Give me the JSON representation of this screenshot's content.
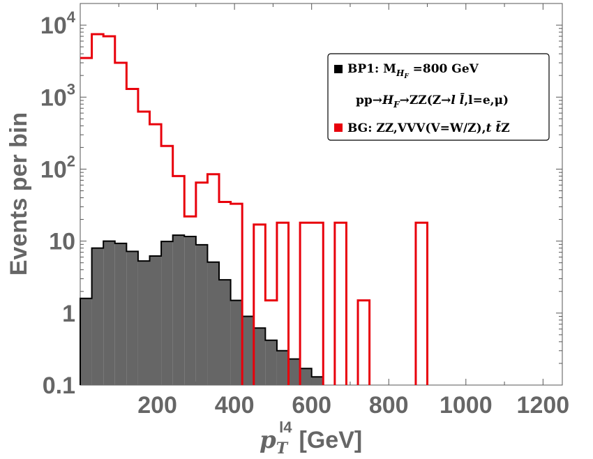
{
  "chart_data": {
    "type": "histogram",
    "yscale": "log",
    "xlim": [
      0,
      1250
    ],
    "ylim": [
      0.1,
      20000
    ],
    "xticks": [
      200,
      400,
      600,
      800,
      1000,
      1200
    ],
    "yticks": [
      0.1,
      1,
      10,
      100,
      1000,
      10000
    ],
    "ytick_labels": [
      {
        "mantissa": "0.1",
        "exp": ""
      },
      {
        "mantissa": "1",
        "exp": ""
      },
      {
        "mantissa": "10",
        "exp": ""
      },
      {
        "mantissa": "10",
        "exp": "2"
      },
      {
        "mantissa": "10",
        "exp": "3"
      },
      {
        "mantissa": "10",
        "exp": "4"
      }
    ],
    "xlabel": {
      "base": "p",
      "sub": "T",
      "sup": "l4",
      "unit": "[GeV]"
    },
    "ylabel": "Events per bin",
    "bin_edges": [
      0,
      30,
      60,
      90,
      120,
      150,
      180,
      210,
      240,
      270,
      300,
      330,
      360,
      390,
      420,
      450,
      480,
      510,
      540,
      570,
      600,
      630,
      660,
      690,
      720,
      750,
      780,
      810,
      840,
      870,
      900
    ],
    "series": [
      {
        "name": "BP1",
        "style": "filled",
        "fill": "#666666",
        "stroke": "#000000",
        "values": [
          1.6,
          8.0,
          10.0,
          9.3,
          7.2,
          5.3,
          6.2,
          9.9,
          12.1,
          11.6,
          8.9,
          5.1,
          2.9,
          1.5,
          0.9,
          0.62,
          0.42,
          0.3,
          0.23,
          0.17,
          0.13,
          null,
          null,
          null,
          null,
          null,
          null,
          null,
          null,
          null
        ]
      },
      {
        "name": "BG",
        "style": "step",
        "stroke": "#e8000b",
        "values": [
          3500,
          7500,
          7000,
          3000,
          1300,
          630,
          420,
          210,
          80,
          22,
          65,
          85,
          35,
          33,
          null,
          17,
          1.5,
          18,
          null,
          18,
          18,
          null,
          18,
          null,
          1.5,
          null,
          null,
          null,
          null,
          18
        ]
      }
    ],
    "legend": {
      "position": "top-right",
      "entries": [
        {
          "label": "BP1: M",
          "sub": "H",
          "subsub": "F",
          "tail": " =800 GeV",
          "color": "#000000"
        },
        {
          "label": "pp→",
          "h": "H",
          "hsub": "F",
          "mid": "→ZZ(Z→",
          "ll": "l l̄",
          "tail": ",l=e,μ)",
          "color": null
        },
        {
          "label": "BG: ZZ,VVV(V=W/Z),",
          "ttbar": "t t̄",
          "tail": "Z",
          "color": "#e8000b"
        }
      ]
    }
  }
}
